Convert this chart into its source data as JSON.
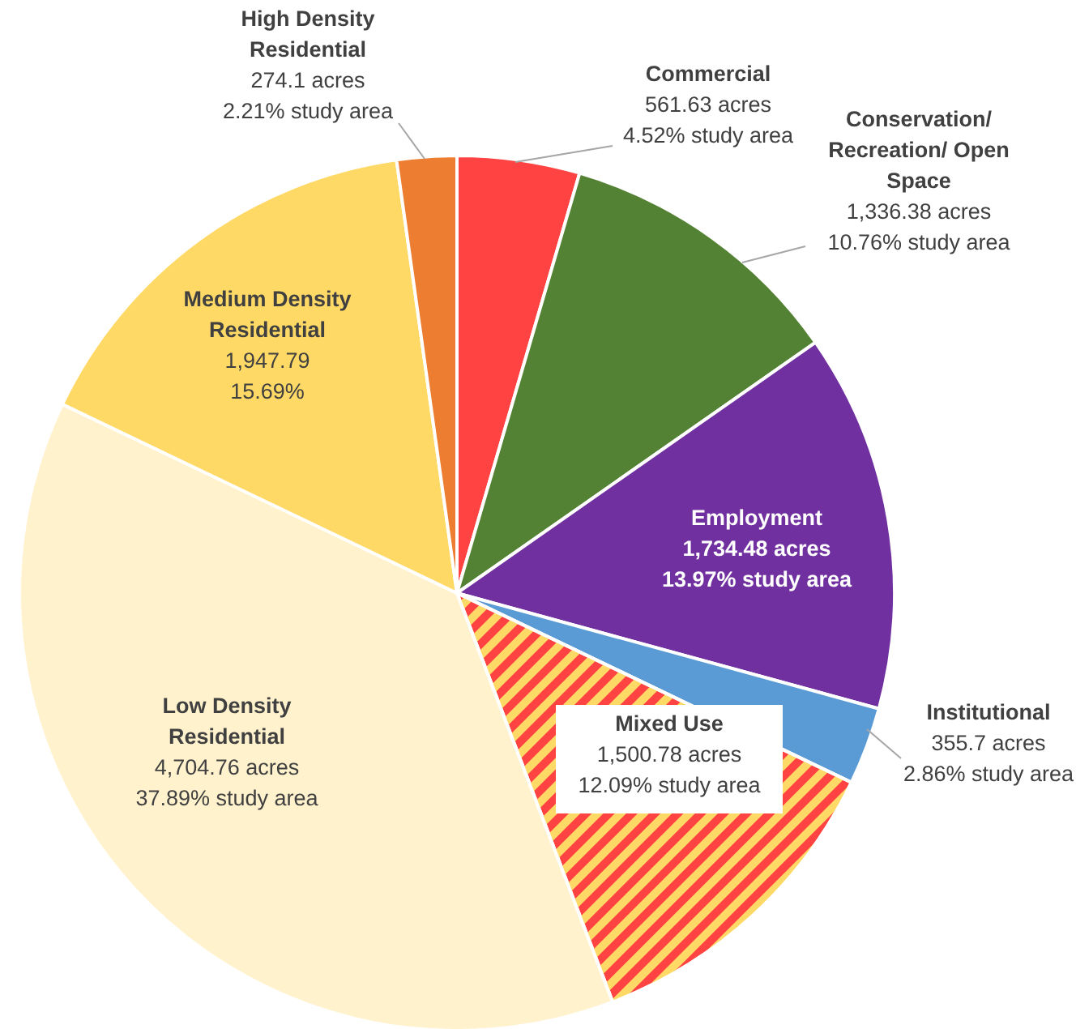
{
  "chart_data": {
    "type": "pie",
    "categories": [
      "Commercial",
      "Conservation/ Recreation/ Open Space",
      "Employment",
      "Institutional",
      "Mixed Use",
      "Low Density Residential",
      "Medium Density Residential",
      "High Density Residential"
    ],
    "values": [
      561.63,
      1336.38,
      1734.48,
      355.7,
      1500.78,
      4704.76,
      1947.79,
      274.1
    ],
    "colors": [
      "#ff4343",
      "#548235",
      "#7030a0",
      "#5b9bd5",
      "#ff4343",
      "#fff2cc",
      "#ffd966",
      "#ed7d31"
    ],
    "value_labels": [
      "561.63 acres\n4.52% study area",
      "1,336.38 acres\n10.76% study area",
      "1,734.48 acres\n13.97% study area",
      "355.7 acres\n2.86% study area",
      "1,500.78 acres\n12.09% study area",
      "4,704.76 acres\n37.89% study area",
      "1,947.79\n15.69%",
      "274.1 acres\n2.21% study area"
    ]
  }
}
